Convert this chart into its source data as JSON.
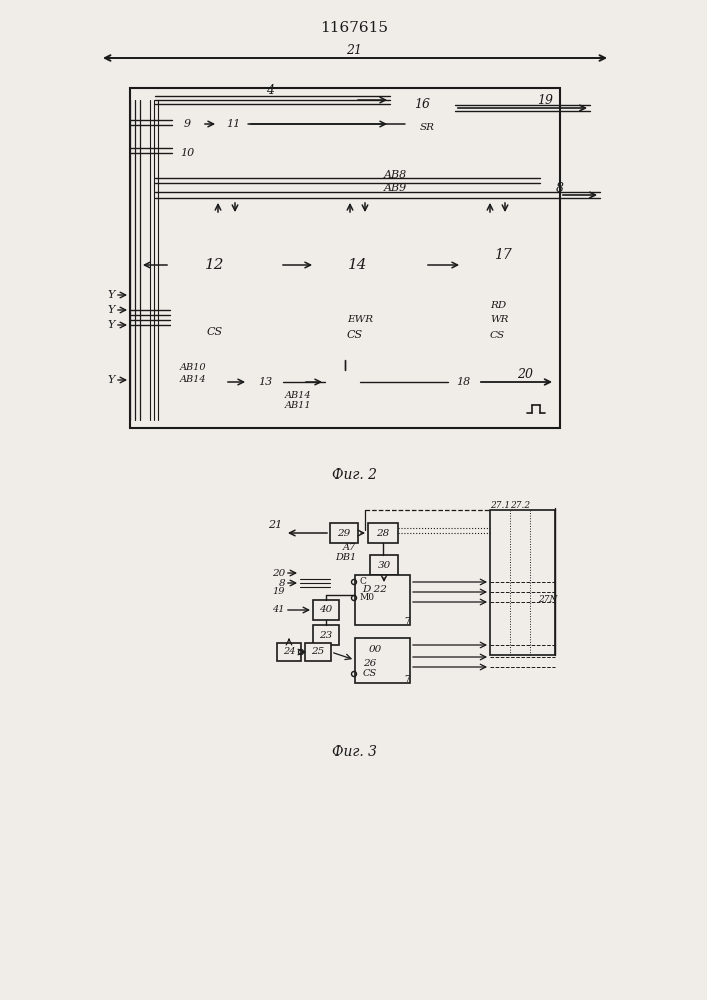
{
  "title": "1167615",
  "fig2_label": "Фиг. 2",
  "fig3_label": "Фиг. 3",
  "bg_color": "#f0ede8",
  "line_color": "#1a1a1a",
  "box_color": "#f0ede8"
}
